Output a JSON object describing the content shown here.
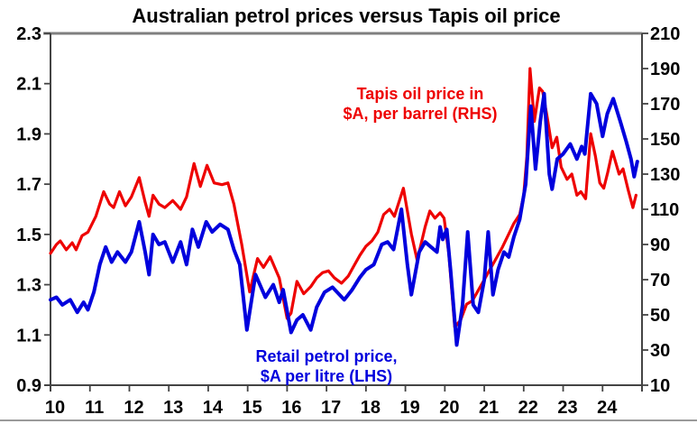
{
  "title": "Australian petrol prices versus Tapis oil price",
  "colors": {
    "oil": "#ee0000",
    "petrol": "#0000dd",
    "frame_top": "#7f7f7f",
    "axis": "#444444"
  },
  "annotations": {
    "oil": {
      "line1": "Tapis oil price in",
      "line2": "$A, per barrel (RHS)"
    },
    "petrol": {
      "line1": "Retail petrol price,",
      "line2": "$A per litre (LHS)"
    }
  },
  "axes": {
    "left": {
      "ticks": [
        2.3,
        2.1,
        1.9,
        1.7,
        1.5,
        1.3,
        1.1,
        0.9
      ],
      "labels": [
        "2.3",
        "2.1",
        "1.9",
        "1.7",
        "1.5",
        "1.3",
        "1.1",
        "0.9"
      ]
    },
    "right": {
      "ticks": [
        210,
        190,
        170,
        150,
        130,
        110,
        90,
        70,
        50,
        30,
        10
      ],
      "labels": [
        "210",
        "190",
        "170",
        "150",
        "130",
        "110",
        "90",
        "70",
        "50",
        "30",
        "10"
      ]
    },
    "x": {
      "years": [
        2010,
        2011,
        2012,
        2013,
        2014,
        2015,
        2016,
        2017,
        2018,
        2019,
        2020,
        2021,
        2022,
        2023,
        2024
      ],
      "labels": [
        "10",
        "11",
        "12",
        "13",
        "14",
        "15",
        "16",
        "17",
        "18",
        "19",
        "20",
        "21",
        "22",
        "23",
        "24"
      ]
    }
  },
  "chart_data": {
    "type": "line",
    "title": "Australian petrol prices versus Tapis oil price",
    "x_range": [
      2010,
      2025
    ],
    "left_range": [
      0.9,
      2.3
    ],
    "right_range": [
      10,
      210
    ],
    "grid": false,
    "legend": "inline text annotations",
    "left_axis_label": "Retail petrol price, $A per litre",
    "right_axis_label": "Tapis oil price in $A, per barrel",
    "series": [
      {
        "id": "oil",
        "name": "Tapis oil price in $A, per barrel (RHS)",
        "axis": "right",
        "color": "#ee0000",
        "width": 3.2,
        "x": [
          2010.0,
          2010.15,
          2010.25,
          2010.4,
          2010.55,
          2010.65,
          2010.8,
          2010.95,
          2011.15,
          2011.35,
          2011.5,
          2011.6,
          2011.75,
          2011.9,
          2012.05,
          2012.25,
          2012.4,
          2012.5,
          2012.6,
          2012.75,
          2012.9,
          2013.1,
          2013.3,
          2013.45,
          2013.64,
          2013.8,
          2013.97,
          2014.15,
          2014.35,
          2014.5,
          2014.65,
          2014.85,
          2015.05,
          2015.25,
          2015.4,
          2015.57,
          2015.8,
          2016.0,
          2016.1,
          2016.25,
          2016.42,
          2016.6,
          2016.75,
          2016.9,
          2017.05,
          2017.2,
          2017.38,
          2017.55,
          2017.7,
          2017.85,
          2018.0,
          2018.15,
          2018.3,
          2018.45,
          2018.6,
          2018.72,
          2018.95,
          2019.15,
          2019.3,
          2019.5,
          2019.62,
          2019.75,
          2019.88,
          2019.98,
          2020.1,
          2020.25,
          2020.4,
          2020.55,
          2020.7,
          2020.85,
          2021.0,
          2021.15,
          2021.3,
          2021.45,
          2021.6,
          2021.75,
          2021.9,
          2022.0,
          2022.08,
          2022.16,
          2022.27,
          2022.4,
          2022.48,
          2022.6,
          2022.72,
          2022.84,
          2022.95,
          2023.1,
          2023.22,
          2023.35,
          2023.45,
          2023.57,
          2023.7,
          2023.82,
          2023.93,
          2024.03,
          2024.13,
          2024.25,
          2024.42,
          2024.52,
          2024.65,
          2024.77,
          2024.85
        ],
        "y": [
          85,
          90,
          92,
          87,
          91,
          87,
          95,
          97,
          106,
          120,
          113,
          111,
          120,
          112,
          117,
          128,
          114,
          106,
          118,
          113,
          111,
          115,
          110,
          117,
          136,
          123,
          135,
          125,
          124,
          125,
          113,
          90,
          63,
          82,
          77,
          83,
          71,
          48,
          51,
          69,
          62,
          66,
          71,
          74,
          75,
          71,
          68,
          72,
          78,
          84,
          89,
          92,
          97,
          107,
          110,
          106,
          122,
          96,
          81,
          100,
          109,
          105,
          108,
          105,
          85,
          43,
          47,
          56,
          58,
          64,
          70,
          76,
          82,
          88,
          95,
          102,
          107,
          118,
          140,
          190,
          160,
          179,
          177,
          162,
          145,
          151,
          134,
          127,
          130,
          118,
          120,
          116,
          153,
          140,
          125,
          122,
          131,
          143,
          130,
          133,
          121,
          111,
          118
        ]
      },
      {
        "id": "petrol",
        "name": "Retail petrol price, $A per litre (LHS)",
        "axis": "left",
        "color": "#0000dd",
        "width": 4,
        "x": [
          2010.0,
          2010.15,
          2010.3,
          2010.5,
          2010.68,
          2010.84,
          2010.95,
          2011.1,
          2011.25,
          2011.4,
          2011.55,
          2011.7,
          2011.9,
          2012.05,
          2012.25,
          2012.4,
          2012.5,
          2012.6,
          2012.75,
          2012.9,
          2013.1,
          2013.3,
          2013.45,
          2013.6,
          2013.75,
          2013.95,
          2014.1,
          2014.3,
          2014.5,
          2014.65,
          2014.8,
          2014.98,
          2015.2,
          2015.45,
          2015.65,
          2015.8,
          2015.9,
          2016.1,
          2016.25,
          2016.4,
          2016.6,
          2016.75,
          2016.95,
          2017.15,
          2017.45,
          2017.65,
          2017.85,
          2018.0,
          2018.2,
          2018.4,
          2018.55,
          2018.7,
          2018.9,
          2019.05,
          2019.15,
          2019.35,
          2019.5,
          2019.65,
          2019.8,
          2019.88,
          2019.95,
          2020.05,
          2020.15,
          2020.3,
          2020.45,
          2020.58,
          2020.72,
          2020.85,
          2021.0,
          2021.1,
          2021.22,
          2021.35,
          2021.5,
          2021.62,
          2021.75,
          2021.9,
          2022.05,
          2022.18,
          2022.3,
          2022.42,
          2022.52,
          2022.65,
          2022.72,
          2022.85,
          2023.0,
          2023.18,
          2023.35,
          2023.47,
          2023.55,
          2023.7,
          2023.85,
          2024.0,
          2024.12,
          2024.27,
          2024.45,
          2024.6,
          2024.72,
          2024.8,
          2024.88
        ],
        "y": [
          1.24,
          1.25,
          1.22,
          1.24,
          1.19,
          1.23,
          1.2,
          1.27,
          1.38,
          1.45,
          1.39,
          1.43,
          1.39,
          1.43,
          1.55,
          1.43,
          1.34,
          1.5,
          1.46,
          1.47,
          1.39,
          1.47,
          1.38,
          1.52,
          1.45,
          1.55,
          1.51,
          1.54,
          1.52,
          1.44,
          1.38,
          1.12,
          1.34,
          1.25,
          1.3,
          1.23,
          1.28,
          1.11,
          1.16,
          1.18,
          1.12,
          1.21,
          1.27,
          1.29,
          1.24,
          1.28,
          1.33,
          1.36,
          1.38,
          1.46,
          1.47,
          1.44,
          1.6,
          1.38,
          1.26,
          1.43,
          1.47,
          1.45,
          1.43,
          1.53,
          1.48,
          1.52,
          1.35,
          1.06,
          1.22,
          1.51,
          1.22,
          1.19,
          1.32,
          1.51,
          1.26,
          1.36,
          1.43,
          1.41,
          1.49,
          1.56,
          1.7,
          2.01,
          1.76,
          1.95,
          2.06,
          1.74,
          1.68,
          1.8,
          1.82,
          1.86,
          1.8,
          1.85,
          1.82,
          2.06,
          2.02,
          1.89,
          1.98,
          2.04,
          1.95,
          1.87,
          1.8,
          1.73,
          1.79
        ]
      }
    ]
  }
}
